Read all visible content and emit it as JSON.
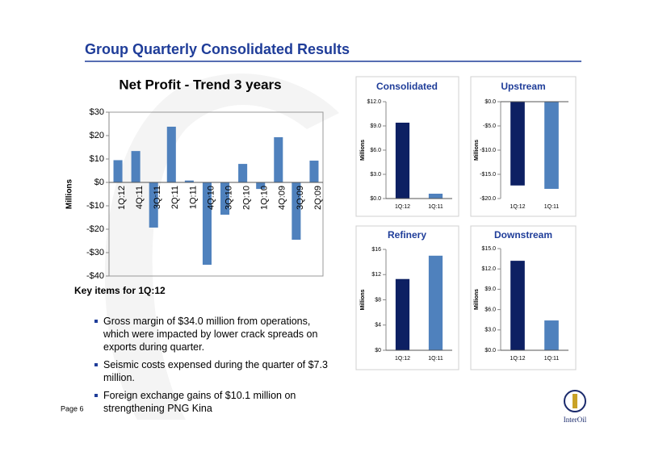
{
  "header": {
    "title": "Group Quarterly Consolidated Results"
  },
  "chart_data": [
    {
      "type": "bar",
      "title": "Net Profit - Trend 3 years",
      "y_label": "Millions",
      "categories": [
        "1Q:12",
        "4Q:11",
        "3Q:11",
        "2Q:11",
        "1Q:11",
        "4Q:10",
        "3Q:10",
        "2Q:10",
        "1Q:10",
        "4Q:09",
        "3Q:09",
        "2Q:09"
      ],
      "values": [
        9.5,
        13.4,
        -19.3,
        23.8,
        0.8,
        -35.2,
        -13.8,
        7.9,
        -2.8,
        19.3,
        -24.5,
        9.3
      ],
      "color": "#4f81bd",
      "ylim": [
        -40,
        30
      ],
      "yticks": [
        {
          "value": 30,
          "label": "$30"
        },
        {
          "value": 20,
          "label": "$20"
        },
        {
          "value": 10,
          "label": "$10"
        },
        {
          "value": 0,
          "label": "$0"
        },
        {
          "value": -10,
          "label": "-$10"
        },
        {
          "value": -20,
          "label": "-$20"
        },
        {
          "value": -30,
          "label": "-$30"
        },
        {
          "value": -40,
          "label": "-$40"
        }
      ]
    },
    {
      "type": "bar",
      "title": "Consolidated",
      "y_label": "Millions",
      "categories": [
        "1Q:12",
        "1Q:11"
      ],
      "values": [
        9.4,
        0.6
      ],
      "colors": [
        "#0d2063",
        "#4f81bd"
      ],
      "ylim": [
        0,
        12
      ],
      "yticks": [
        {
          "value": 12,
          "label": "$12.0"
        },
        {
          "value": 9,
          "label": "$9.0"
        },
        {
          "value": 6,
          "label": "$6.0"
        },
        {
          "value": 3,
          "label": "$3.0"
        },
        {
          "value": 0,
          "label": "$0.0"
        }
      ]
    },
    {
      "type": "bar",
      "title": "Upstream",
      "y_label": "Millions",
      "categories": [
        "1Q:12",
        "1Q:11"
      ],
      "values": [
        -17.3,
        -18.0
      ],
      "colors": [
        "#0d2063",
        "#4f81bd"
      ],
      "ylim": [
        -20,
        0
      ],
      "yticks": [
        {
          "value": 0,
          "label": "$0.0"
        },
        {
          "value": -5,
          "label": "-$5.0"
        },
        {
          "value": -10,
          "label": "-$10.0"
        },
        {
          "value": -15,
          "label": "-$15.0"
        },
        {
          "value": -20,
          "label": "-$20.0"
        }
      ]
    },
    {
      "type": "bar",
      "title": "Refinery",
      "y_label": "Millions",
      "categories": [
        "1Q:12",
        "1Q:11"
      ],
      "values": [
        11.3,
        15.0
      ],
      "colors": [
        "#0d2063",
        "#4f81bd"
      ],
      "ylim": [
        0,
        16
      ],
      "yticks": [
        {
          "value": 16,
          "label": "$16"
        },
        {
          "value": 12,
          "label": "$12"
        },
        {
          "value": 8,
          "label": "$8"
        },
        {
          "value": 4,
          "label": "$4"
        },
        {
          "value": 0,
          "label": "$0"
        }
      ]
    },
    {
      "type": "bar",
      "title": "Downstream",
      "y_label": "Millions",
      "categories": [
        "1Q:12",
        "1Q:11"
      ],
      "values": [
        13.2,
        4.4
      ],
      "colors": [
        "#0d2063",
        "#4f81bd"
      ],
      "ylim": [
        0,
        15
      ],
      "yticks": [
        {
          "value": 15,
          "label": "$15.0"
        },
        {
          "value": 12,
          "label": "$12.0"
        },
        {
          "value": 9,
          "label": "$9.0"
        },
        {
          "value": 6,
          "label": "$6.0"
        },
        {
          "value": 3,
          "label": "$3.0"
        },
        {
          "value": 0,
          "label": "$0.0"
        }
      ]
    }
  ],
  "key_items": {
    "heading": "Key items for 1Q:12",
    "bullets": [
      "Gross margin of $34.0 million from operations, which were impacted by lower crack spreads on exports during quarter.",
      "Seismic costs expensed during the quarter of $7.3 million.",
      "Foreign exchange gains of $10.1 million on strengthening PNG Kina"
    ]
  },
  "footer": {
    "page": "Page 6",
    "logo": "InterOil"
  }
}
